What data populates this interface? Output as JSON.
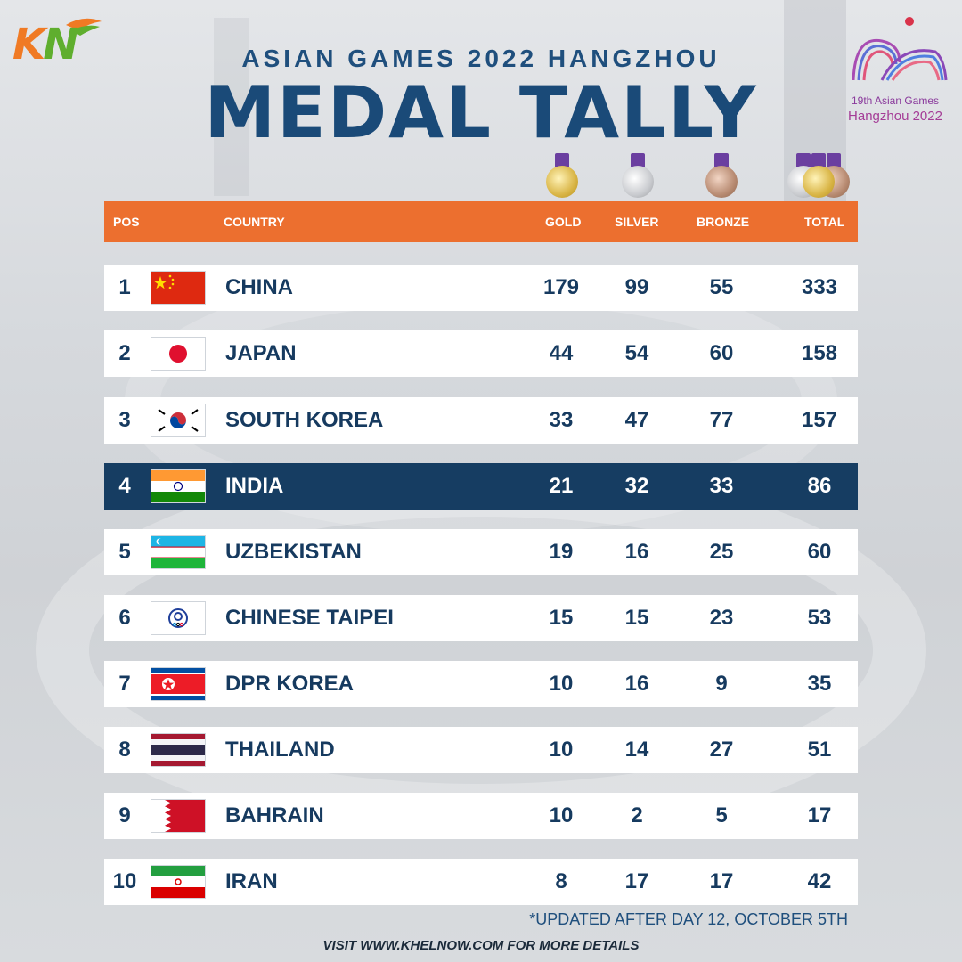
{
  "brand": {
    "logo_k": "K",
    "logo_n": "N",
    "colors": {
      "k": "#f07a24",
      "n": "#5fae2e"
    }
  },
  "header": {
    "subtitle": "ASIAN GAMES 2022 HANGZHOU",
    "title": "MEDAL TALLY"
  },
  "event_logo": {
    "line1": "19th Asian Games",
    "line2": "Hangzhou 2022"
  },
  "medal_icons": [
    "gold-medal-icon",
    "silver-medal-icon",
    "bronze-medal-icon",
    "medals-total-icon"
  ],
  "table": {
    "columns": {
      "pos": "POS",
      "country": "COUNTRY",
      "gold": "GOLD",
      "silver": "SILVER",
      "bronze": "BRONZE",
      "total": "TOTAL"
    },
    "rows": [
      {
        "pos": "1",
        "country": "CHINA",
        "flag": "china-flag-icon",
        "gold": "179",
        "silver": "99",
        "bronze": "55",
        "total": "333"
      },
      {
        "pos": "2",
        "country": "JAPAN",
        "flag": "japan-flag-icon",
        "gold": "44",
        "silver": "54",
        "bronze": "60",
        "total": "158"
      },
      {
        "pos": "3",
        "country": "SOUTH KOREA",
        "flag": "south-korea-flag-icon",
        "gold": "33",
        "silver": "47",
        "bronze": "77",
        "total": "157"
      },
      {
        "pos": "4",
        "country": "INDIA",
        "flag": "india-flag-icon",
        "gold": "21",
        "silver": "32",
        "bronze": "33",
        "total": "86",
        "highlight": true
      },
      {
        "pos": "5",
        "country": "UZBEKISTAN",
        "flag": "uzbekistan-flag-icon",
        "gold": "19",
        "silver": "16",
        "bronze": "25",
        "total": "60"
      },
      {
        "pos": "6",
        "country": "CHINESE TAIPEI",
        "flag": "chinese-taipei-flag-icon",
        "gold": "15",
        "silver": "15",
        "bronze": "23",
        "total": "53"
      },
      {
        "pos": "7",
        "country": "DPR KOREA",
        "flag": "dpr-korea-flag-icon",
        "gold": "10",
        "silver": "16",
        "bronze": "9",
        "total": "35"
      },
      {
        "pos": "8",
        "country": "THAILAND",
        "flag": "thailand-flag-icon",
        "gold": "10",
        "silver": "14",
        "bronze": "27",
        "total": "51"
      },
      {
        "pos": "9",
        "country": "BAHRAIN",
        "flag": "bahrain-flag-icon",
        "gold": "10",
        "silver": "2",
        "bronze": "5",
        "total": "17"
      },
      {
        "pos": "10",
        "country": "IRAN",
        "flag": "iran-flag-icon",
        "gold": "8",
        "silver": "17",
        "bronze": "17",
        "total": "42"
      }
    ]
  },
  "colors": {
    "header_bar": "#ec6f2f",
    "highlight_row": "#163d62",
    "text": "#163a5f"
  },
  "footnote": "*UPDATED AFTER DAY 12, OCTOBER 5TH",
  "visit": "VISIT WWW.KHELNOW.COM FOR MORE DETAILS"
}
